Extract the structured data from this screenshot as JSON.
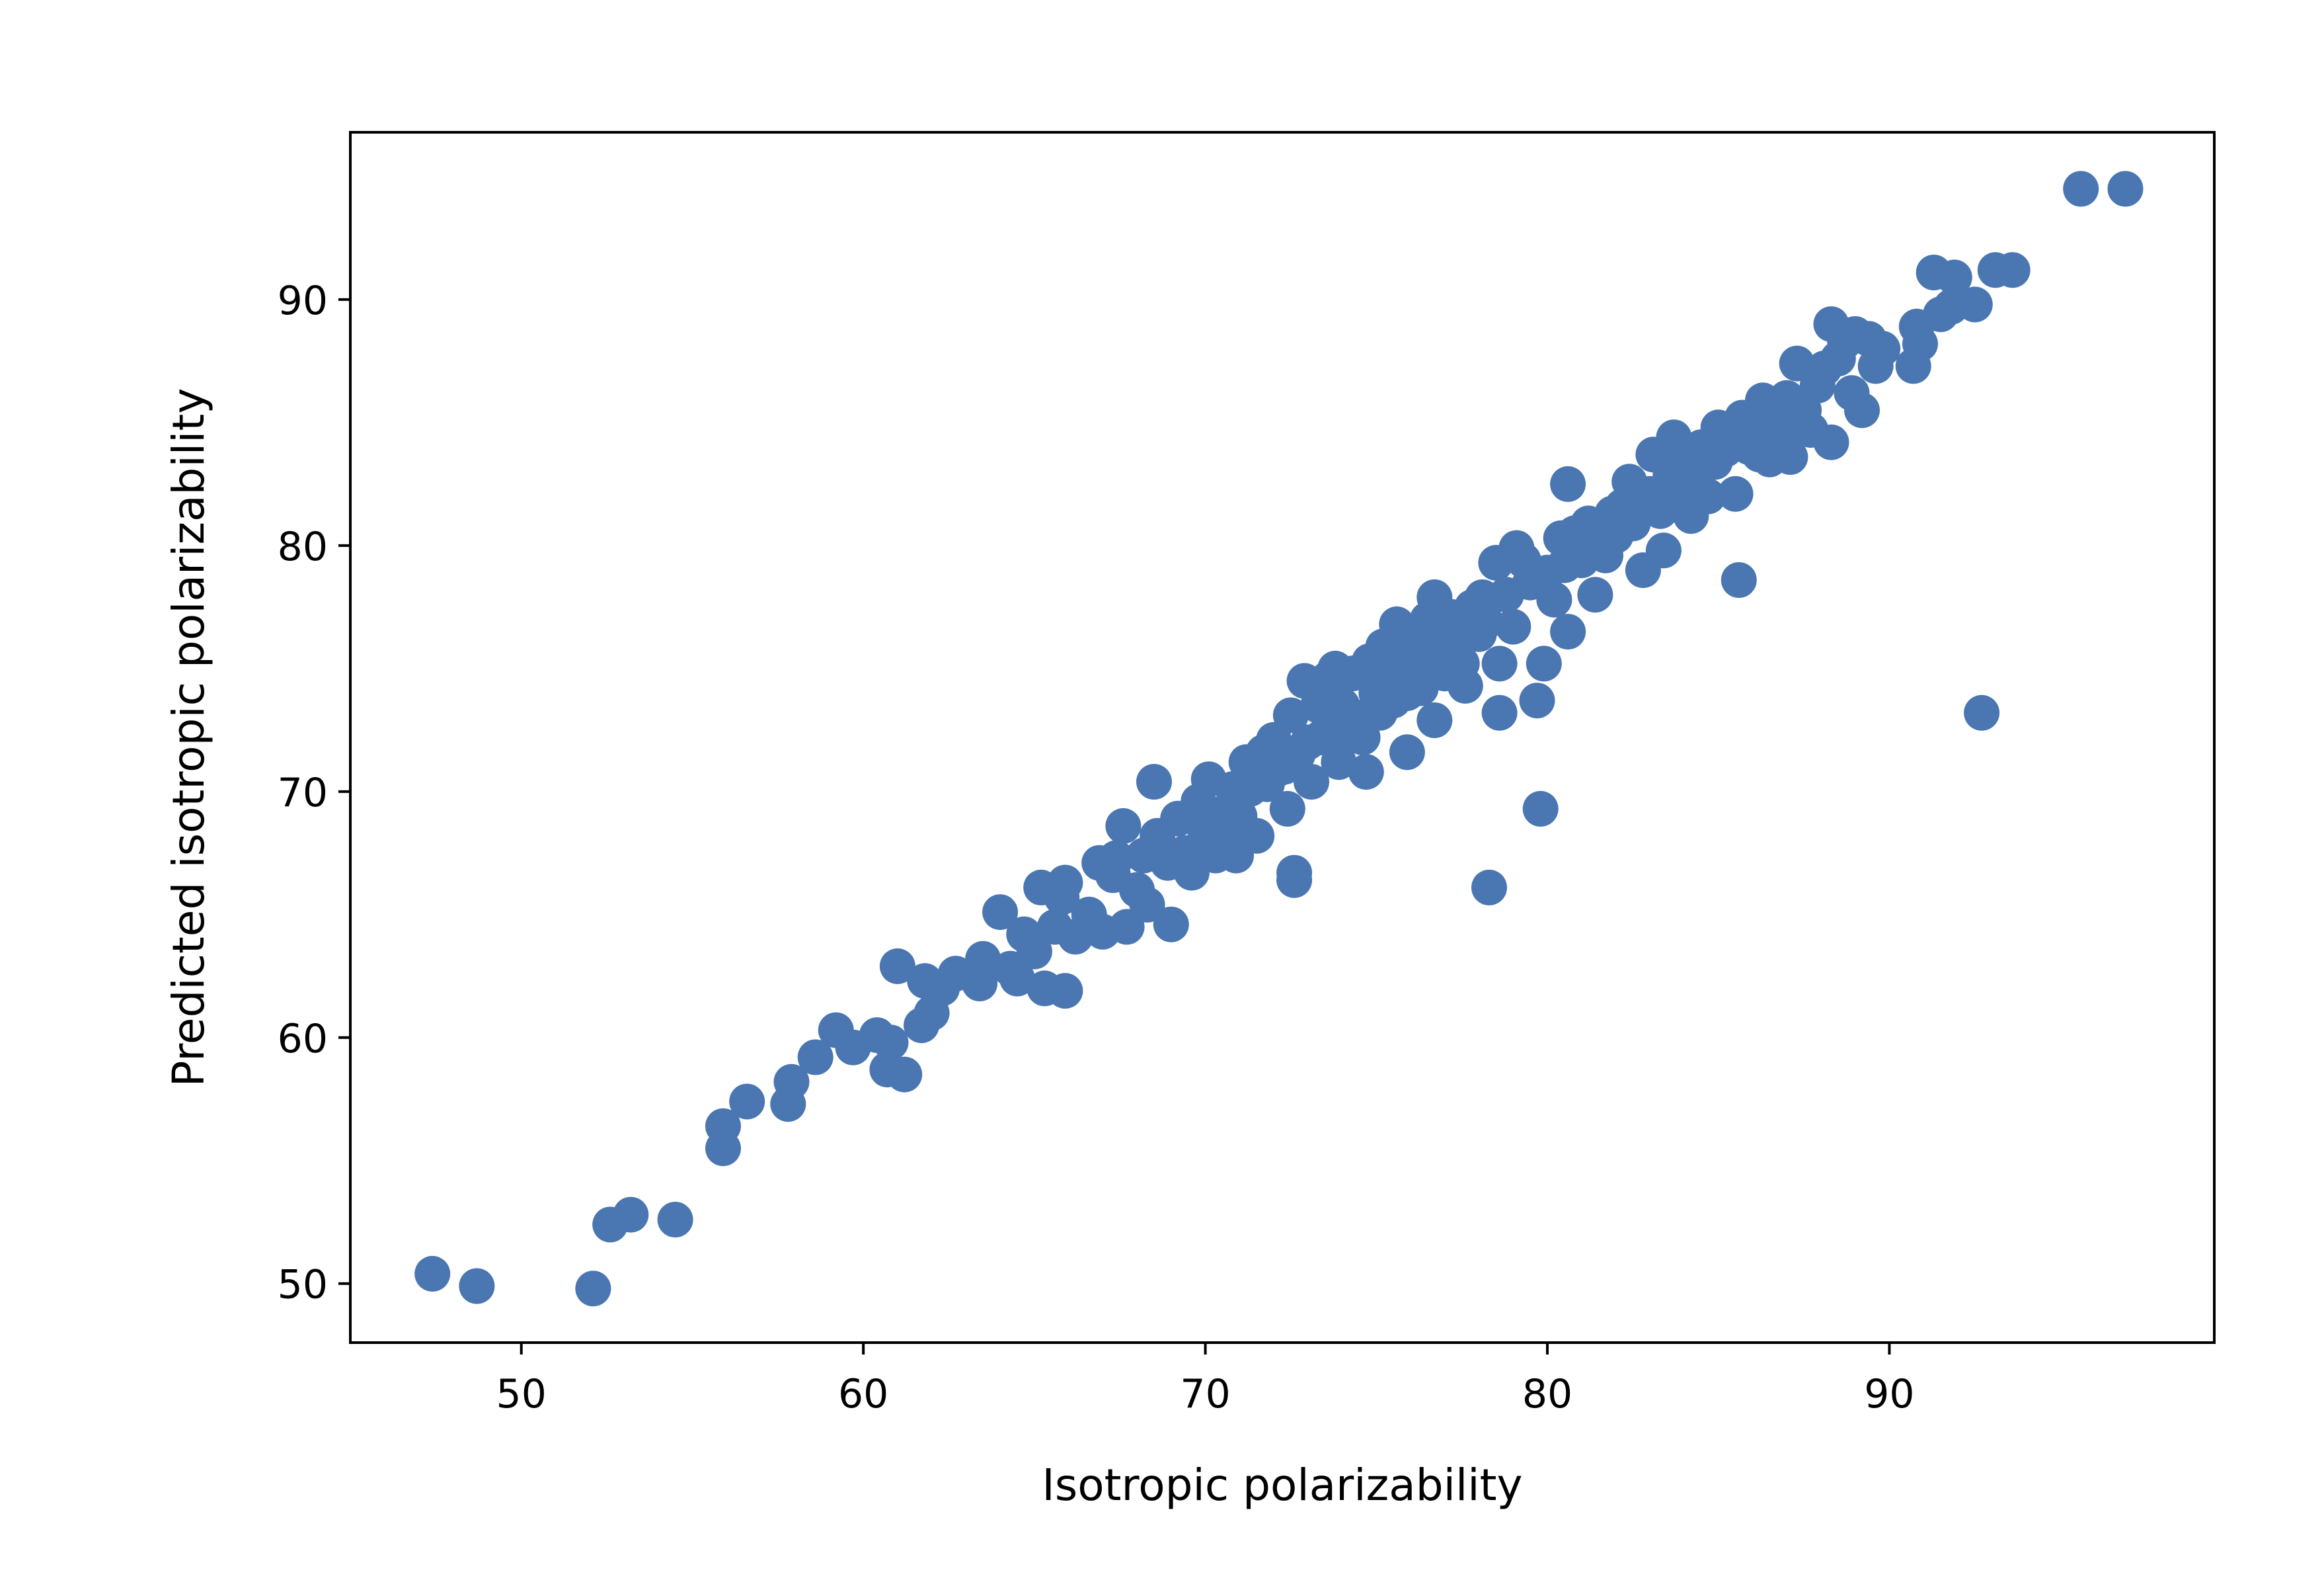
{
  "chart_data": {
    "type": "scatter",
    "title": "",
    "xlabel": "Isotropic polarizability",
    "ylabel": "Predicted isotropic polarizability",
    "xlim": [
      45,
      99.5
    ],
    "ylim": [
      47.6,
      96.8
    ],
    "xticks": [
      50,
      60,
      70,
      80,
      90
    ],
    "yticks": [
      50,
      60,
      70,
      80,
      90
    ],
    "grid": false,
    "legend": "none",
    "marker_color": "#4a76b1",
    "series": [
      {
        "points": [
          [
            47.4,
            50.4
          ],
          [
            48.7,
            49.9
          ],
          [
            52.1,
            49.8
          ],
          [
            52.6,
            52.4
          ],
          [
            53.2,
            52.8
          ],
          [
            54.5,
            52.6
          ],
          [
            55.9,
            56.4
          ],
          [
            55.9,
            55.5
          ],
          [
            56.6,
            57.4
          ],
          [
            57.8,
            57.3
          ],
          [
            57.9,
            58.2
          ],
          [
            58.6,
            59.2
          ],
          [
            59.2,
            60.3
          ],
          [
            59.7,
            59.6
          ],
          [
            60.4,
            60.1
          ],
          [
            60.8,
            59.8
          ],
          [
            60.7,
            58.7
          ],
          [
            61.2,
            58.5
          ],
          [
            61.0,
            62.9
          ],
          [
            61.7,
            60.5
          ],
          [
            61.8,
            62.3
          ],
          [
            62.0,
            61.0
          ],
          [
            62.3,
            62.0
          ],
          [
            62.7,
            62.6
          ],
          [
            63.4,
            62.2
          ],
          [
            63.5,
            63.2
          ],
          [
            64.0,
            65.1
          ],
          [
            64.3,
            62.8
          ],
          [
            64.5,
            62.4
          ],
          [
            64.7,
            64.2
          ],
          [
            65.0,
            63.5
          ],
          [
            65.2,
            66.1
          ],
          [
            65.3,
            62.0
          ],
          [
            65.6,
            64.5
          ],
          [
            65.8,
            65.7
          ],
          [
            65.9,
            61.9
          ],
          [
            65.9,
            66.3
          ],
          [
            66.2,
            64.1
          ],
          [
            66.6,
            65.0
          ],
          [
            66.9,
            67.1
          ],
          [
            67.0,
            64.3
          ],
          [
            67.3,
            66.6
          ],
          [
            67.4,
            67.3
          ],
          [
            67.6,
            68.6
          ],
          [
            67.7,
            64.5
          ],
          [
            68.0,
            66.0
          ],
          [
            68.2,
            67.4
          ],
          [
            68.3,
            65.4
          ],
          [
            68.5,
            70.4
          ],
          [
            68.6,
            68.2
          ],
          [
            68.9,
            67.1
          ],
          [
            69.0,
            64.6
          ],
          [
            69.2,
            68.9
          ],
          [
            69.4,
            67.5
          ],
          [
            69.6,
            66.7
          ],
          [
            69.8,
            69.6
          ],
          [
            70.0,
            68.3
          ],
          [
            70.1,
            70.5
          ],
          [
            70.3,
            67.4
          ],
          [
            70.5,
            69.1
          ],
          [
            70.7,
            68.1
          ],
          [
            70.8,
            70.1
          ],
          [
            70.9,
            67.4
          ],
          [
            71.0,
            69.0
          ],
          [
            71.2,
            71.2
          ],
          [
            71.3,
            70.1
          ],
          [
            71.5,
            68.2
          ],
          [
            71.7,
            71.6
          ],
          [
            71.8,
            70.3
          ],
          [
            72.0,
            72.1
          ],
          [
            72.1,
            70.9
          ],
          [
            72.3,
            71.0
          ],
          [
            72.4,
            69.3
          ],
          [
            72.5,
            73.1
          ],
          [
            72.6,
            66.7
          ],
          [
            72.6,
            66.4
          ],
          [
            72.7,
            71.5
          ],
          [
            72.9,
            74.5
          ],
          [
            73.0,
            72.0
          ],
          [
            73.1,
            70.4
          ],
          [
            73.3,
            73.5
          ],
          [
            73.4,
            72.2
          ],
          [
            73.6,
            74.6
          ],
          [
            73.7,
            72.9
          ],
          [
            73.8,
            75.0
          ],
          [
            73.9,
            71.2
          ],
          [
            74.0,
            73.5
          ],
          [
            74.2,
            72.4
          ],
          [
            74.3,
            74.8
          ],
          [
            74.5,
            73.0
          ],
          [
            74.6,
            72.2
          ],
          [
            74.7,
            70.8
          ],
          [
            74.8,
            75.3
          ],
          [
            75.0,
            74.0
          ],
          [
            75.1,
            73.2
          ],
          [
            75.2,
            75.9
          ],
          [
            75.4,
            74.6
          ],
          [
            75.5,
            73.7
          ],
          [
            75.6,
            76.8
          ],
          [
            75.7,
            75.1
          ],
          [
            75.9,
            74.0
          ],
          [
            75.9,
            71.6
          ],
          [
            76.0,
            76.4
          ],
          [
            76.2,
            75.5
          ],
          [
            76.3,
            74.2
          ],
          [
            76.5,
            77.0
          ],
          [
            76.6,
            75.8
          ],
          [
            76.7,
            72.9
          ],
          [
            76.7,
            77.9
          ],
          [
            76.9,
            76.0
          ],
          [
            77.0,
            74.8
          ],
          [
            77.2,
            77.1
          ],
          [
            77.3,
            76.5
          ],
          [
            77.5,
            75.2
          ],
          [
            77.6,
            74.3
          ],
          [
            77.8,
            77.5
          ],
          [
            78.0,
            76.4
          ],
          [
            78.1,
            77.9
          ],
          [
            78.2,
            76.9
          ],
          [
            78.3,
            66.1
          ],
          [
            78.5,
            79.3
          ],
          [
            78.6,
            73.2
          ],
          [
            78.6,
            75.2
          ],
          [
            78.8,
            78.0
          ],
          [
            79.0,
            76.7
          ],
          [
            79.1,
            79.9
          ],
          [
            79.3,
            79.4
          ],
          [
            79.5,
            78.5
          ],
          [
            79.7,
            73.7
          ],
          [
            79.8,
            69.3
          ],
          [
            79.9,
            75.2
          ],
          [
            80.0,
            78.9
          ],
          [
            80.2,
            77.8
          ],
          [
            80.4,
            80.3
          ],
          [
            80.5,
            79.2
          ],
          [
            80.6,
            76.5
          ],
          [
            80.6,
            82.5
          ],
          [
            80.8,
            80.5
          ],
          [
            81.0,
            79.4
          ],
          [
            81.2,
            80.9
          ],
          [
            81.4,
            78.0
          ],
          [
            81.5,
            80.6
          ],
          [
            81.7,
            79.6
          ],
          [
            81.9,
            81.3
          ],
          [
            82.0,
            80.4
          ],
          [
            82.2,
            81.6
          ],
          [
            82.4,
            82.6
          ],
          [
            82.5,
            80.9
          ],
          [
            82.7,
            81.8
          ],
          [
            82.8,
            79.0
          ],
          [
            83.0,
            82.1
          ],
          [
            83.1,
            83.7
          ],
          [
            83.3,
            81.4
          ],
          [
            83.4,
            79.8
          ],
          [
            83.6,
            82.9
          ],
          [
            83.7,
            84.4
          ],
          [
            83.9,
            82.3
          ],
          [
            84.0,
            83.5
          ],
          [
            84.2,
            81.2
          ],
          [
            84.4,
            82.8
          ],
          [
            84.5,
            84.0
          ],
          [
            84.7,
            82.0
          ],
          [
            84.9,
            83.4
          ],
          [
            85.0,
            84.8
          ],
          [
            85.2,
            83.9
          ],
          [
            85.4,
            84.3
          ],
          [
            85.5,
            82.1
          ],
          [
            85.6,
            78.6
          ],
          [
            85.7,
            85.2
          ],
          [
            85.9,
            84.0
          ],
          [
            86.1,
            84.7
          ],
          [
            86.2,
            83.7
          ],
          [
            86.3,
            85.9
          ],
          [
            86.5,
            83.5
          ],
          [
            86.7,
            85.1
          ],
          [
            86.8,
            84.4
          ],
          [
            87.0,
            86.0
          ],
          [
            87.1,
            83.6
          ],
          [
            87.3,
            87.4
          ],
          [
            87.5,
            85.5
          ],
          [
            87.7,
            84.7
          ],
          [
            87.9,
            86.5
          ],
          [
            88.1,
            87.2
          ],
          [
            88.3,
            89.0
          ],
          [
            88.3,
            84.2
          ],
          [
            88.5,
            87.6
          ],
          [
            88.7,
            88.3
          ],
          [
            88.9,
            86.2
          ],
          [
            89.0,
            88.6
          ],
          [
            89.2,
            85.5
          ],
          [
            89.4,
            88.4
          ],
          [
            89.6,
            87.3
          ],
          [
            89.8,
            88.0
          ],
          [
            90.7,
            87.3
          ],
          [
            90.8,
            88.9
          ],
          [
            90.9,
            88.2
          ],
          [
            91.3,
            91.1
          ],
          [
            91.5,
            89.4
          ],
          [
            91.8,
            89.7
          ],
          [
            91.9,
            90.9
          ],
          [
            92.5,
            89.8
          ],
          [
            92.7,
            73.2
          ],
          [
            93.1,
            91.2
          ],
          [
            93.6,
            91.2
          ],
          [
            95.6,
            94.5
          ],
          [
            96.9,
            94.5
          ]
        ]
      }
    ]
  }
}
